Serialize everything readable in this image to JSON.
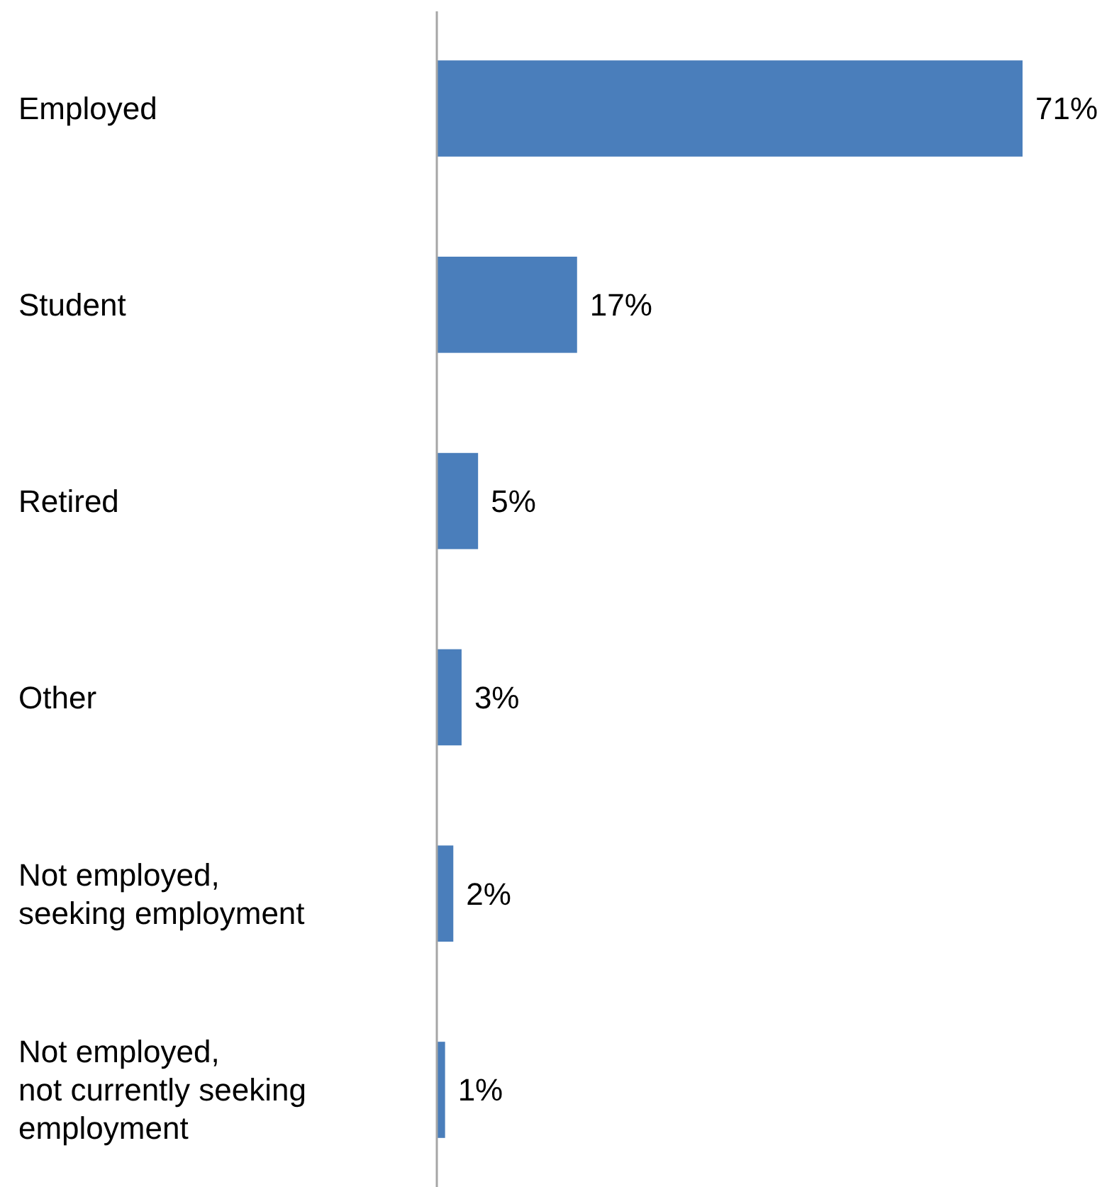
{
  "chart_data": {
    "type": "bar",
    "orientation": "horizontal",
    "categories": [
      "Employed",
      "Student",
      "Retired",
      "Other",
      "Not employed, seeking employment",
      "Not employed, not currently seeking employment"
    ],
    "values": [
      71,
      17,
      5,
      3,
      2,
      1
    ],
    "value_labels": [
      "71%",
      "17%",
      "5%",
      "3%",
      "2%",
      "1%"
    ],
    "color": "#4a7ebb"
  }
}
